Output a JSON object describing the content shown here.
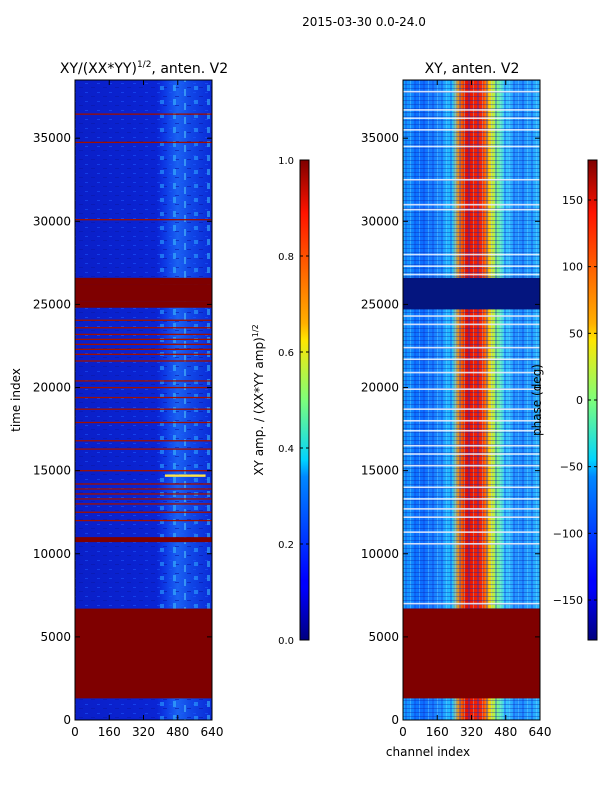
{
  "suptitle": "2015-03-30 0.0-24.0",
  "chart_data": [
    {
      "type": "heatmap",
      "title_main": "XY/(XX*YY)",
      "title_exp": "1/2",
      "title_suffix": ", anten. V2",
      "ylabel": "time index",
      "xlabel": "",
      "xlim": [
        0,
        640
      ],
      "ylim": [
        0,
        38500
      ],
      "xticks": [
        0,
        160,
        320,
        480,
        640
      ],
      "yticks": [
        0,
        5000,
        10000,
        15000,
        20000,
        25000,
        30000,
        35000
      ],
      "colorbar": {
        "label_main": "XY amp. / (XX*YY amp)",
        "label_exp": "1/2",
        "range": [
          0.0,
          1.0
        ],
        "ticks": [
          "0.0",
          "0.2",
          "0.4",
          "0.6",
          "0.8",
          "1.0"
        ],
        "tick_values": [
          0.0,
          0.2,
          0.4,
          0.6,
          0.8,
          1.0
        ]
      },
      "saturated_bands": [
        [
          1300,
          6700
        ],
        [
          10700,
          11000
        ],
        [
          24800,
          25200
        ],
        [
          26200,
          26600
        ],
        [
          25200,
          26200
        ]
      ],
      "thin_lines": [
        36450,
        34750,
        30100,
        24050,
        23600,
        23200,
        22900,
        22600,
        22300,
        22000,
        21600,
        20400,
        20000,
        19400,
        18700,
        17900,
        16800,
        16300,
        15000,
        14200,
        13900,
        13600,
        13300,
        13000,
        12500,
        12000
      ],
      "highlight_segment": {
        "y": 14700,
        "x": [
          420,
          610
        ]
      }
    },
    {
      "type": "heatmap",
      "title": "XY, anten. V2",
      "xlabel": "channel index",
      "ylabel": "",
      "xlim": [
        0,
        640
      ],
      "ylim": [
        0,
        38500
      ],
      "xticks": [
        0,
        160,
        320,
        480,
        640
      ],
      "yticks": [
        0,
        5000,
        10000,
        15000,
        20000,
        25000,
        30000,
        35000
      ],
      "colorbar": {
        "label": "phase (deg)",
        "range": [
          -180,
          180
        ],
        "ticks": [
          "−150",
          "−100",
          "−50",
          "0",
          "50",
          "100",
          "150"
        ],
        "tick_values": [
          -150,
          -100,
          -50,
          0,
          50,
          100,
          150
        ]
      },
      "saturated_bands": [
        [
          1300,
          6700
        ]
      ],
      "blank_bands": [
        [
          24700,
          26600
        ]
      ],
      "white_lines": [
        36700,
        35500,
        34500,
        32500,
        31000,
        30700,
        28000,
        27300,
        26800,
        24300,
        23800,
        22400,
        21700,
        20900,
        19900,
        18700,
        18000,
        17400,
        16500,
        16000,
        15300,
        14000,
        13300,
        12700,
        12200,
        11300,
        10600,
        7000,
        37800,
        36200
      ]
    }
  ]
}
